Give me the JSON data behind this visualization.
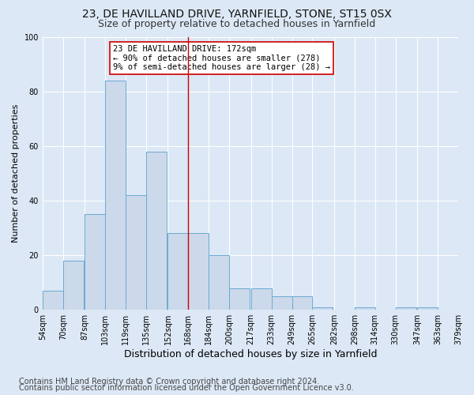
{
  "title1": "23, DE HAVILLAND DRIVE, YARNFIELD, STONE, ST15 0SX",
  "title2": "Size of property relative to detached houses in Yarnfield",
  "xlabel": "Distribution of detached houses by size in Yarnfield",
  "ylabel": "Number of detached properties",
  "footer1": "Contains HM Land Registry data © Crown copyright and database right 2024.",
  "footer2": "Contains public sector information licensed under the Open Government Licence v3.0.",
  "annotation_line1": "23 DE HAVILLAND DRIVE: 172sqm",
  "annotation_line2": "← 90% of detached houses are smaller (278)",
  "annotation_line3": "9% of semi-detached houses are larger (28) →",
  "bar_left_edges": [
    54,
    70,
    87,
    103,
    119,
    135,
    152,
    168,
    184,
    200,
    217,
    233,
    249,
    265,
    282,
    298,
    314,
    330,
    347,
    363
  ],
  "bar_heights": [
    7,
    18,
    35,
    84,
    42,
    58,
    28,
    28,
    20,
    8,
    8,
    5,
    5,
    1,
    0,
    1,
    0,
    1,
    1,
    0
  ],
  "bin_width": 16,
  "bar_color": "#ccd9ea",
  "bar_edge_color": "#6aaad4",
  "tick_labels": [
    "54sqm",
    "70sqm",
    "87sqm",
    "103sqm",
    "119sqm",
    "135sqm",
    "152sqm",
    "168sqm",
    "184sqm",
    "200sqm",
    "217sqm",
    "233sqm",
    "249sqm",
    "265sqm",
    "282sqm",
    "298sqm",
    "314sqm",
    "330sqm",
    "347sqm",
    "363sqm",
    "379sqm"
  ],
  "vline_x": 168,
  "vline_color": "#cc0000",
  "ylim": [
    0,
    100
  ],
  "yticks": [
    0,
    20,
    40,
    60,
    80,
    100
  ],
  "bg_color": "#dce8f5",
  "plot_bg_color": "#dce8f5",
  "grid_color": "#ffffff",
  "title1_fontsize": 10,
  "title2_fontsize": 9,
  "xlabel_fontsize": 9,
  "ylabel_fontsize": 8,
  "tick_fontsize": 7,
  "footer_fontsize": 7,
  "ann_fontsize": 7.5
}
